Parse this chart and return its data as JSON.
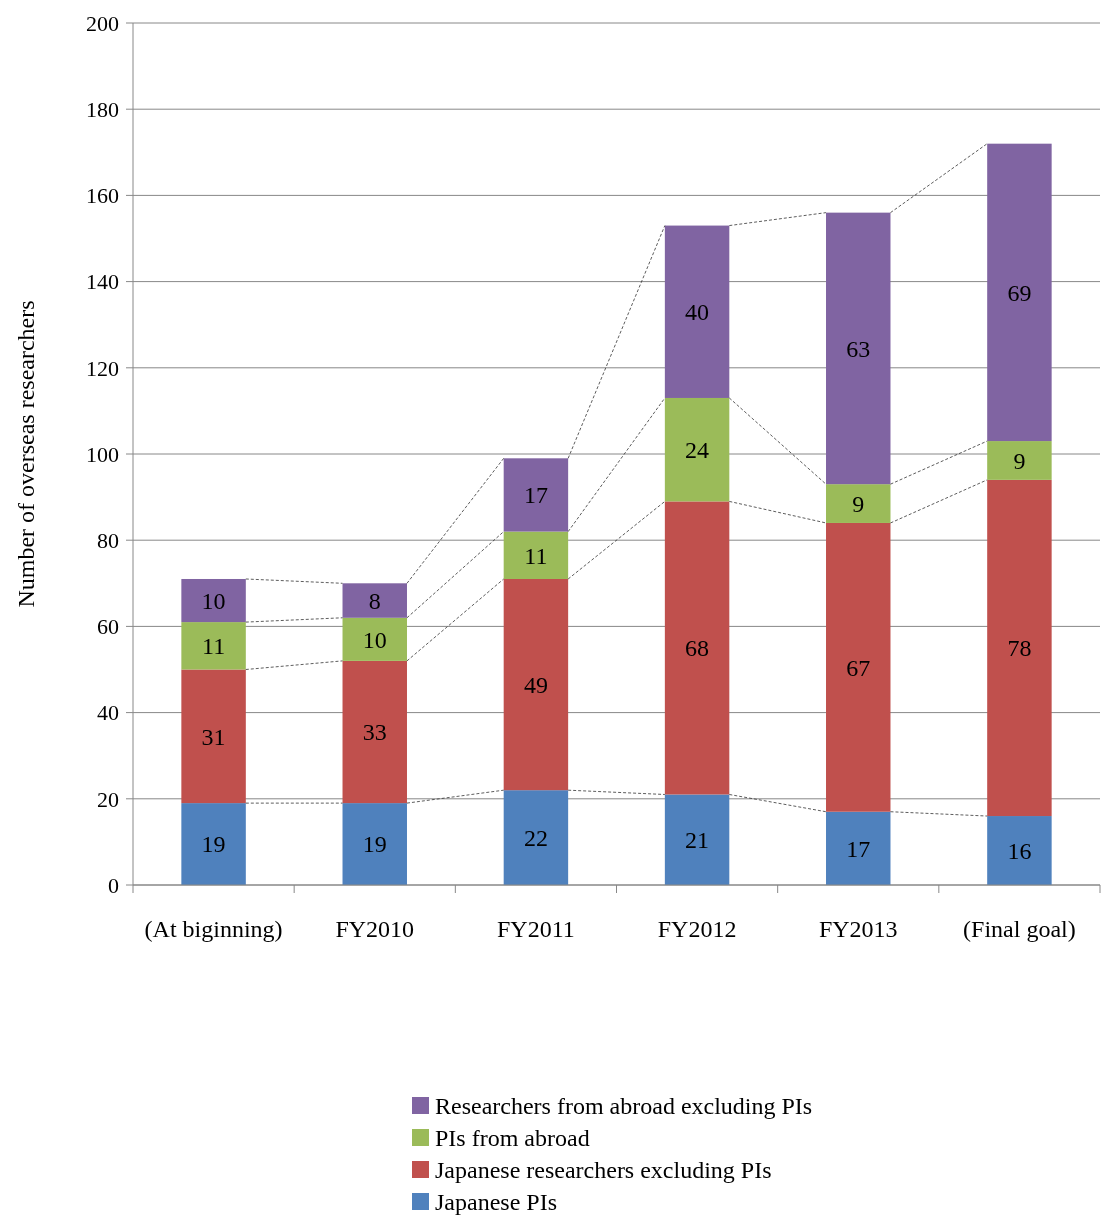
{
  "chart_data": {
    "type": "bar",
    "stacked": true,
    "ylabel": "Number of overseas researchers",
    "categories": [
      "(At biginning)",
      "FY2010",
      "FY2011",
      "FY2012",
      "FY2013",
      "(Final goal)"
    ],
    "series": [
      {
        "name": "Japanese PIs",
        "color": "#4f81bd",
        "values": [
          19,
          19,
          22,
          21,
          17,
          16
        ]
      },
      {
        "name": "Japanese researchers excluding PIs",
        "color": "#c0504d",
        "values": [
          31,
          33,
          49,
          68,
          67,
          78
        ]
      },
      {
        "name": "PIs from abroad",
        "color": "#9bbb59",
        "values": [
          11,
          10,
          11,
          24,
          9,
          9
        ]
      },
      {
        "name": "Researchers from abroad excluding PIs",
        "color": "#8064a2",
        "values": [
          10,
          8,
          17,
          40,
          63,
          69
        ]
      }
    ],
    "ylim": [
      0,
      200
    ],
    "yticks": [
      0,
      20,
      40,
      60,
      80,
      100,
      120,
      140,
      160,
      180,
      200
    ],
    "grid": "y",
    "legend": "bottom",
    "data_labels": true
  }
}
